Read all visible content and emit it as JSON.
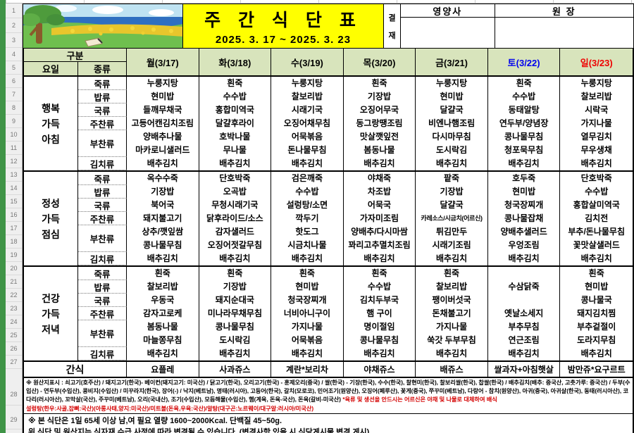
{
  "window": {
    "row_numbers": [
      "1",
      "2",
      "3",
      "4",
      "5",
      "6",
      "7",
      "8",
      "9",
      "10",
      "11",
      "12",
      "13",
      "14",
      "15",
      "16",
      "17",
      "18",
      "19",
      "20",
      "21",
      "22",
      "23",
      "24",
      "25",
      "26",
      "27",
      "28",
      "29"
    ]
  },
  "header": {
    "title": "주 간 식 단 표",
    "date_range": "2025. 3. 17 ~ 2025. 3. 23",
    "approval_chars": [
      "결",
      "재"
    ],
    "nutritionist_label": "영양사",
    "director_label": "원  장"
  },
  "table": {
    "gubun_label": "구분",
    "day_label": "요일",
    "type_label": "종류",
    "day_headers": [
      {
        "label": "월(3/17)",
        "color": "#000000"
      },
      {
        "label": "화(3/18)",
        "color": "#000000"
      },
      {
        "label": "수(3/19)",
        "color": "#000000"
      },
      {
        "label": "목(3/20)",
        "color": "#000000"
      },
      {
        "label": "금(3/21)",
        "color": "#000000"
      },
      {
        "label": "토(3/22)",
        "color": "#0000ee"
      },
      {
        "label": "일(3/23)",
        "color": "#ee0000"
      }
    ],
    "categories": [
      "죽류",
      "밥류",
      "국류",
      "주찬류",
      "부찬류",
      "김치류"
    ],
    "meals": [
      {
        "name_lines": [
          "행복",
          "가득",
          "아침"
        ],
        "cells": [
          [
            "누룽지탕",
            "현미밥",
            "들깨무채국",
            "고등어캔김치조림",
            "양배추나물",
            "마카로니샐러드",
            "배추김치"
          ],
          [
            "흰죽",
            "수수밥",
            "홍합미역국",
            "달걀후라이",
            "호박나물",
            "무나물",
            "배추김치"
          ],
          [
            "누룽지탕",
            "찰보리밥",
            "시래기국",
            "오징어채무침",
            "어묵볶음",
            "돈나물무침",
            "배추김치"
          ],
          [
            "흰죽",
            "기장밥",
            "오징어무국",
            "동그랑땡조림",
            "맛살깻잎전",
            "봄동나물",
            "배추김치"
          ],
          [
            "누룽지탕",
            "현미밥",
            "달걀국",
            "비엔나햄조림",
            "다시마무침",
            "도시락김",
            "배추김치"
          ],
          [
            "흰죽",
            "수수밥",
            "동태알탕",
            "연두부/양념장",
            "콩나물무침",
            "청포묵무침",
            "배추김치"
          ],
          [
            "누룽지탕",
            "찰보리밥",
            "시락국",
            "가지나물",
            "열무김치",
            "무우생채",
            "배추김치"
          ]
        ]
      },
      {
        "name_lines": [
          "정성",
          "가득",
          "점심"
        ],
        "cells": [
          [
            "옥수수죽",
            "기장밥",
            "북어국",
            "돼지불고기",
            "상추/깻잎쌈",
            "콩나물무침",
            "배추김치"
          ],
          [
            "단호박죽",
            "오곡밥",
            "무청시래기국",
            "닭후라이드/소스",
            "감자샐러드",
            "오징어젓갈무침",
            "배추김치"
          ],
          [
            "검은깨죽",
            "수수밥",
            "설렁탕/소면",
            "깍두기",
            "핫도그",
            "시금치나물",
            "배추김치"
          ],
          [
            "야채죽",
            "차조밥",
            "어묵국",
            "가자미조림",
            "양배추/다시마쌈",
            "꽈리고추멸치조림",
            "배추김치"
          ],
          [
            "팥죽",
            "기장밥",
            "달걀국",
            "카레소스/시금치(어르신)",
            "튀김만두",
            "시래기조림",
            "배추김치"
          ],
          [
            "호두죽",
            "현미밥",
            "청국장찌개",
            "콩나물잡채",
            "양배추샐러드",
            "우엉조림",
            "배추김치"
          ],
          [
            "단호박죽",
            "수수밥",
            "홍합살미역국",
            "김치전",
            "부추/돈나물무침",
            "꽃맛살샐러드",
            "배추김치"
          ]
        ]
      },
      {
        "name_lines": [
          "건강",
          "가득",
          "저녁"
        ],
        "cells": [
          [
            "흰죽",
            "찰보리밥",
            "우동국",
            "감자고로케",
            "봄동나물",
            "마늘쫑무침",
            "배추김치"
          ],
          [
            "흰죽",
            "기장밥",
            "돼지순대국",
            "미나라무채무침",
            "콩나물무침",
            "도시락김",
            "배추김치"
          ],
          [
            "흰죽",
            "현미밥",
            "청국장찌개",
            "너비아니구이",
            "가지나물",
            "어묵볶음",
            "배추김치"
          ],
          [
            "흰죽",
            "수수밥",
            "김치두부국",
            "햄 구이",
            "명이절임",
            "콩나물무침",
            "배추김치"
          ],
          [
            "흰죽",
            "찰보리밥",
            "팽이버섯국",
            "돈채불고기",
            "가지나물",
            "쑥갓 두부무침",
            "배추김치"
          ],
          [
            "",
            "수삼닭죽",
            "",
            "옛날소세지",
            "부추무침",
            "연근조림",
            "배추김치"
          ],
          [
            "흰죽",
            "현미밥",
            "콩나물국",
            "돼지김치찜",
            "부추겉절이",
            "도라지무침",
            "배추김치"
          ]
        ]
      }
    ],
    "snack": {
      "label": "간식",
      "items": [
        "요플레",
        "사과쥬스",
        "계란*보리차",
        "야채쥬스",
        "배쥬스",
        "쌀과자+아침햇살",
        "밤만쥬*요구르트"
      ]
    }
  },
  "footer": {
    "origin_text": "※ 원산지표시 : 쇠고기(호주산) / 돼지고기(한국)- 베이컨(돼지고기: 미국산) / 닭고기(한국), 오리고기(한국) - 훈제오리(중국) / 쌀(한국) - 기장(한국), 수수(한국), 찰현미(한국), 찰보리쌀(한국), 찹쌀(한국) / 배추김치(배추: 중국산, 고춧가루: 중국산) / 두부(수입산) - 연두부(수입산), 콩비지(수입산) / 미꾸라지(한국), 장어(-) / 낙지(베트남), 명태(러시아), 고등어(한국), 갈치(모로코), 민어조기(원양산), 오징어(페루산), 꽃게(중국), 쭈꾸미(베트남), 다랑어 - 참치(원양산), 아귀(중국), 아귀살(한국), 동태(러시아산), 코다리(러시아산), 꼬막살(국산), 주꾸미(베트남), 오리(국내산), 조기(수입산), 모듬해물(수입산), 햄(계육, 돈육-국산), 돈육(갈비-미국산)",
    "origin_red": "*육류 및 생선을 안드시는 어르신은 야채 및 나물로 대체하여 배식",
    "soup_origin": "설렁탕(한우:사골,잡뼈:국산)(아롱사태,양지:미국산)/미트볼(돈육,우육:국산)/알탕(대구곤:노르웨이/대구알:러시아/미국산)",
    "note1": "※ 본 식단은 1일 65세 이상 남,여 필요 열량 1600~2000Kcal. 단백질 45~50g.",
    "note2": "위 식단 및 원산지는 식자재 수급 사정에 따라 변경될 수 있습니다. (변경사항 있을 시 식당게시물 변경 게시)"
  }
}
